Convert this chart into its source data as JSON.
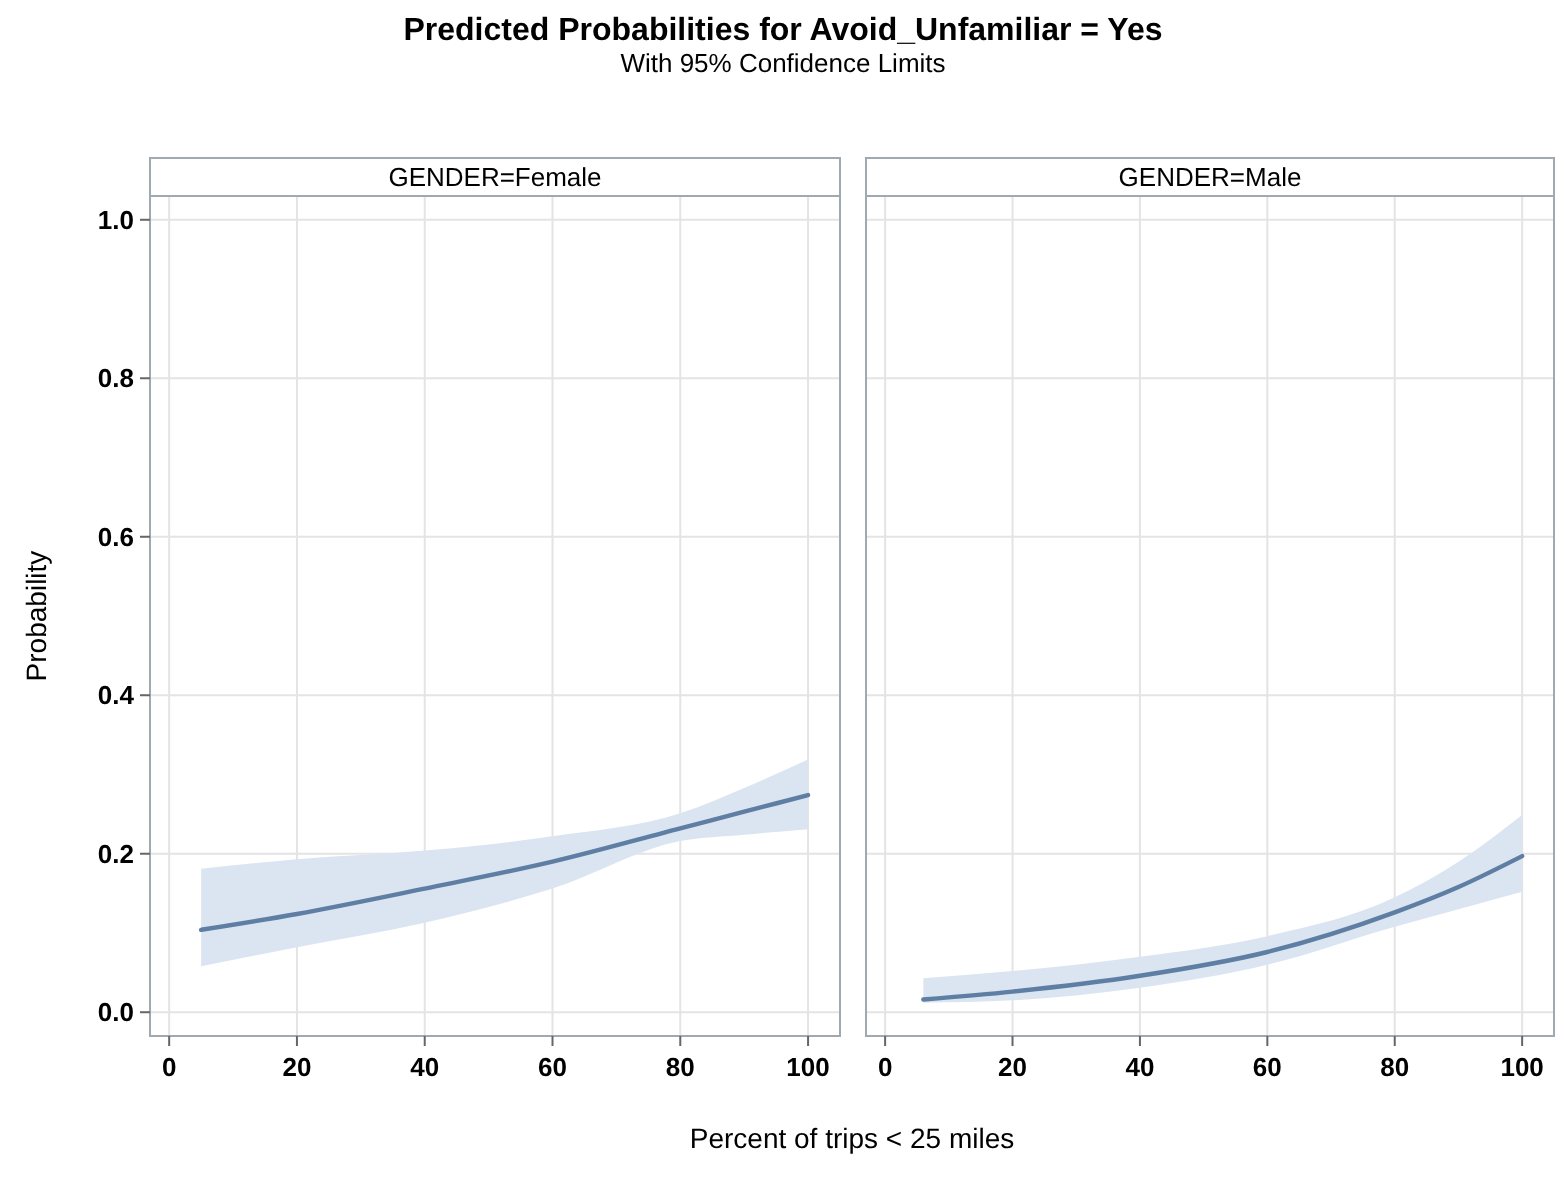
{
  "chart_data": [
    {
      "type": "line",
      "title": "Predicted Probabilities for Avoid_Unfamiliar = Yes",
      "subtitle": "With 95% Confidence Limits",
      "xlabel": "Percent of trips < 25 miles",
      "ylabel": "Probability",
      "annotations": [
        "GENDER=Female"
      ],
      "x": [
        5,
        20,
        40,
        60,
        80,
        90,
        100
      ],
      "series": [
        {
          "color": "#5f7ea3",
          "values": [
            0.104,
            0.124,
            0.156,
            0.19,
            0.232,
            0.253,
            0.274
          ],
          "lower": [
            0.058,
            0.082,
            0.113,
            0.156,
            0.216,
            0.224,
            0.231
          ],
          "upper": [
            0.181,
            0.193,
            0.204,
            0.222,
            0.251,
            0.283,
            0.319
          ]
        }
      ],
      "xlim": [
        -3,
        105
      ],
      "ylim": [
        -0.03,
        1.03
      ],
      "xticks": [
        0,
        20,
        40,
        60,
        80,
        100
      ],
      "yticks": [
        {
          "value": 0,
          "label": "0.0"
        },
        0.2,
        0.4,
        0.6,
        0.8,
        {
          "value": 1,
          "label": "1.0"
        }
      ],
      "grid": true
    },
    {
      "type": "line",
      "annotations": [
        "GENDER=Male"
      ],
      "x": [
        6,
        20,
        40,
        60,
        80,
        90,
        100
      ],
      "series": [
        {
          "color": "#5f7ea3",
          "values": [
            0.016,
            0.026,
            0.046,
            0.076,
            0.126,
            0.158,
            0.197
          ],
          "lower": [
            0.012,
            0.015,
            0.031,
            0.06,
            0.108,
            0.13,
            0.152
          ],
          "upper": [
            0.043,
            0.052,
            0.07,
            0.096,
            0.145,
            0.19,
            0.249
          ]
        }
      ],
      "xlim": [
        -3,
        105
      ],
      "ylim": [
        -0.03,
        1.03
      ],
      "xticks": [
        0,
        20,
        40,
        60,
        80,
        100
      ],
      "yticks": [
        0,
        0.2,
        0.4,
        0.6,
        0.8,
        1
      ],
      "grid": true,
      "tick_labels": "x"
    }
  ]
}
